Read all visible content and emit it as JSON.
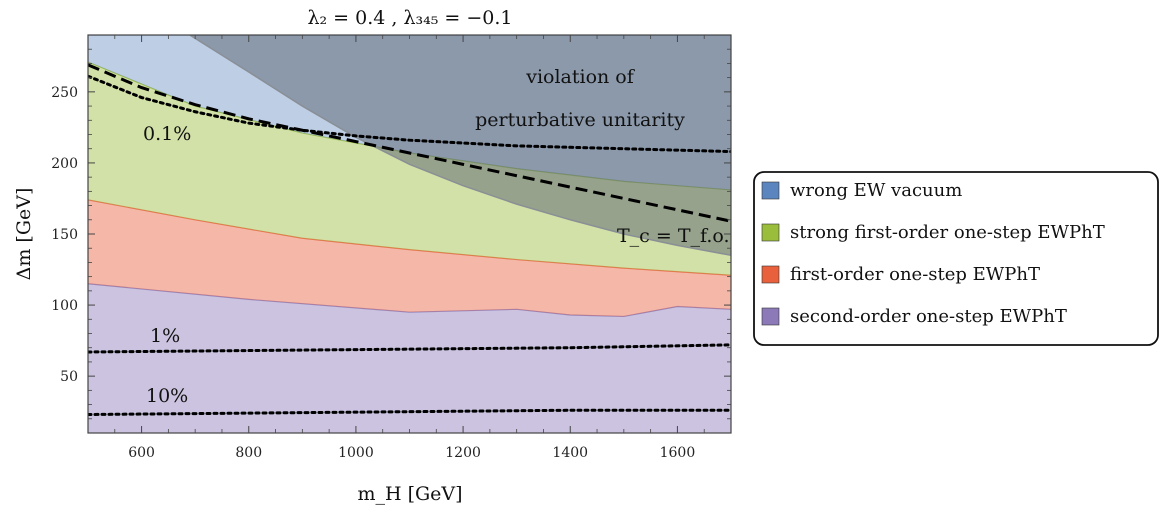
{
  "chart_data": {
    "type": "area",
    "title": "λ₂ = 0.4 ,  λ₃₄₅ = −0.1",
    "xlabel": "m_H [GeV]",
    "ylabel": "Δm [GeV]",
    "xlim": [
      500,
      1700
    ],
    "ylim": [
      10,
      290
    ],
    "x_ticks": [
      600,
      800,
      1000,
      1200,
      1400,
      1600
    ],
    "y_ticks": [
      50,
      100,
      150,
      200,
      250
    ],
    "grid": false,
    "legend_position": "right",
    "regions": [
      {
        "name": "second-order one-step EWPhT",
        "color": "#8c7ab8",
        "fill_opacity": 0.45,
        "lower": [
          [
            500,
            10
          ],
          [
            1700,
            10
          ]
        ],
        "upper": [
          [
            500,
            115
          ],
          [
            800,
            104
          ],
          [
            1100,
            95
          ],
          [
            1300,
            97
          ],
          [
            1400,
            93
          ],
          [
            1500,
            92
          ],
          [
            1600,
            99
          ],
          [
            1700,
            97
          ]
        ]
      },
      {
        "name": "first-order one-step EWPhT",
        "color": "#e8603c",
        "fill_opacity": 0.45,
        "lower": [
          [
            500,
            115
          ],
          [
            800,
            104
          ],
          [
            1100,
            95
          ],
          [
            1300,
            97
          ],
          [
            1400,
            93
          ],
          [
            1500,
            92
          ],
          [
            1600,
            99
          ],
          [
            1700,
            97
          ]
        ],
        "upper": [
          [
            500,
            174
          ],
          [
            700,
            160
          ],
          [
            900,
            147
          ],
          [
            1100,
            139
          ],
          [
            1300,
            132
          ],
          [
            1500,
            126
          ],
          [
            1700,
            121
          ]
        ]
      },
      {
        "name": "strong first-order one-step EWPhT",
        "color": "#9bbd3c",
        "fill_opacity": 0.45,
        "lower": [
          [
            500,
            174
          ],
          [
            700,
            160
          ],
          [
            900,
            147
          ],
          [
            1100,
            139
          ],
          [
            1300,
            132
          ],
          [
            1500,
            126
          ],
          [
            1700,
            121
          ]
        ],
        "upper": [
          [
            500,
            271
          ],
          [
            700,
            240
          ],
          [
            900,
            221
          ],
          [
            1100,
            207
          ],
          [
            1300,
            196
          ],
          [
            1500,
            187
          ],
          [
            1700,
            181
          ]
        ]
      },
      {
        "name": "wrong EW vacuum",
        "color": "#5b85bf",
        "fill_opacity": 0.4,
        "lower": [
          [
            500,
            271
          ],
          [
            700,
            240
          ],
          [
            900,
            221
          ],
          [
            1100,
            207
          ],
          [
            1300,
            196
          ],
          [
            1500,
            187
          ],
          [
            1700,
            181
          ]
        ],
        "upper": [
          [
            500,
            290
          ],
          [
            1700,
            290
          ]
        ]
      }
    ],
    "unitarity_region": {
      "label_line1": "violation of",
      "label_line2": "perturbative unitarity",
      "color": "#5a6472",
      "fill_opacity": 0.5,
      "boundary": [
        [
          690,
          290
        ],
        [
          800,
          264
        ],
        [
          900,
          240
        ],
        [
          1000,
          218
        ],
        [
          1100,
          199
        ],
        [
          1200,
          184
        ],
        [
          1300,
          171
        ],
        [
          1400,
          160
        ],
        [
          1500,
          150
        ],
        [
          1600,
          142
        ],
        [
          1700,
          135
        ]
      ]
    },
    "lines": [
      {
        "label": "T_c = T_f.o.",
        "style": "dashed",
        "points": [
          [
            500,
            269
          ],
          [
            600,
            253
          ],
          [
            700,
            241
          ],
          [
            800,
            231
          ],
          [
            900,
            223
          ],
          [
            1000,
            215
          ],
          [
            1100,
            207
          ],
          [
            1200,
            199
          ],
          [
            1300,
            191
          ],
          [
            1400,
            183
          ],
          [
            1500,
            175
          ],
          [
            1600,
            167
          ],
          [
            1700,
            159
          ]
        ]
      },
      {
        "label": "0.1%",
        "style": "dotted",
        "points": [
          [
            500,
            261
          ],
          [
            600,
            246
          ],
          [
            700,
            236
          ],
          [
            800,
            228
          ],
          [
            900,
            223
          ],
          [
            1000,
            219
          ],
          [
            1100,
            216
          ],
          [
            1200,
            214
          ],
          [
            1300,
            212
          ],
          [
            1400,
            211
          ],
          [
            1500,
            210
          ],
          [
            1600,
            209
          ],
          [
            1700,
            208
          ]
        ]
      },
      {
        "label": "1%",
        "style": "dotted",
        "points": [
          [
            500,
            67
          ],
          [
            800,
            68
          ],
          [
            1100,
            69
          ],
          [
            1400,
            70
          ],
          [
            1700,
            72
          ]
        ]
      },
      {
        "label": "10%",
        "style": "dotted",
        "points": [
          [
            500,
            23
          ],
          [
            800,
            24
          ],
          [
            1100,
            25
          ],
          [
            1400,
            26
          ],
          [
            1700,
            26
          ]
        ]
      }
    ]
  }
}
